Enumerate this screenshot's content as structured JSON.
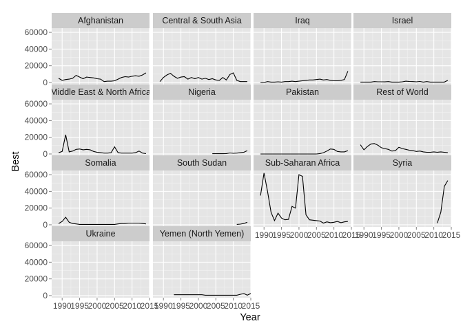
{
  "chart_data": {
    "type": "line",
    "xlabel": "Year",
    "ylabel": "Best",
    "xlim": [
      1987,
      2015
    ],
    "ylim": [
      -2500,
      65000
    ],
    "x_ticks": [
      1990,
      1995,
      2000,
      2005,
      2010,
      2015
    ],
    "x_tick_labels": [
      "1990",
      "1995",
      "2000",
      "2005",
      "2010",
      "2015"
    ],
    "y_ticks": [
      0,
      20000,
      40000,
      60000
    ],
    "y_tick_labels": [
      "0",
      "20000",
      "40000",
      "60000"
    ],
    "grid": true,
    "facets": [
      {
        "name": "Afghanistan",
        "points": [
          [
            1989,
            5000
          ],
          [
            1990,
            2500
          ],
          [
            1991,
            3500
          ],
          [
            1992,
            4000
          ],
          [
            1993,
            5000
          ],
          [
            1994,
            8500
          ],
          [
            1995,
            6500
          ],
          [
            1996,
            4500
          ],
          [
            1997,
            6500
          ],
          [
            1998,
            6000
          ],
          [
            1999,
            5500
          ],
          [
            2000,
            4500
          ],
          [
            2001,
            4000
          ],
          [
            2002,
            1000
          ],
          [
            2003,
            1500
          ],
          [
            2004,
            1500
          ],
          [
            2005,
            2000
          ],
          [
            2006,
            4000
          ],
          [
            2007,
            6000
          ],
          [
            2008,
            7000
          ],
          [
            2009,
            6500
          ],
          [
            2010,
            7500
          ],
          [
            2011,
            8000
          ],
          [
            2012,
            7500
          ],
          [
            2013,
            9000
          ],
          [
            2014,
            11500
          ]
        ]
      },
      {
        "name": "Central & South Asia",
        "points": [
          [
            1989,
            1000
          ],
          [
            1990,
            6000
          ],
          [
            1991,
            9000
          ],
          [
            1992,
            11000
          ],
          [
            1993,
            7500
          ],
          [
            1994,
            5000
          ],
          [
            1995,
            6500
          ],
          [
            1996,
            7000
          ],
          [
            1997,
            4000
          ],
          [
            1998,
            6000
          ],
          [
            1999,
            4500
          ],
          [
            2000,
            6000
          ],
          [
            2001,
            4000
          ],
          [
            2002,
            5000
          ],
          [
            2003,
            3500
          ],
          [
            2004,
            4500
          ],
          [
            2005,
            3000
          ],
          [
            2006,
            2500
          ],
          [
            2007,
            6000
          ],
          [
            2008,
            3000
          ],
          [
            2009,
            9500
          ],
          [
            2010,
            11500
          ],
          [
            2011,
            2500
          ],
          [
            2012,
            1000
          ],
          [
            2013,
            1000
          ],
          [
            2014,
            1000
          ]
        ]
      },
      {
        "name": "Iraq",
        "points": [
          [
            1989,
            0
          ],
          [
            1990,
            0
          ],
          [
            1991,
            1000
          ],
          [
            1992,
            500
          ],
          [
            1993,
            500
          ],
          [
            1994,
            800
          ],
          [
            1995,
            500
          ],
          [
            1996,
            1000
          ],
          [
            1997,
            1000
          ],
          [
            1998,
            1500
          ],
          [
            1999,
            1000
          ],
          [
            2000,
            1500
          ],
          [
            2001,
            2000
          ],
          [
            2002,
            2500
          ],
          [
            2003,
            3000
          ],
          [
            2004,
            3000
          ],
          [
            2005,
            3500
          ],
          [
            2006,
            4000
          ],
          [
            2007,
            3000
          ],
          [
            2008,
            3500
          ],
          [
            2009,
            2500
          ],
          [
            2010,
            2000
          ],
          [
            2011,
            2000
          ],
          [
            2012,
            2500
          ],
          [
            2013,
            3500
          ],
          [
            2014,
            13500
          ]
        ]
      },
      {
        "name": "Israel",
        "points": [
          [
            1989,
            500
          ],
          [
            1990,
            500
          ],
          [
            1991,
            500
          ],
          [
            1992,
            500
          ],
          [
            1993,
            1000
          ],
          [
            1994,
            800
          ],
          [
            1995,
            800
          ],
          [
            1996,
            700
          ],
          [
            1997,
            1000
          ],
          [
            1998,
            500
          ],
          [
            1999,
            500
          ],
          [
            2000,
            500
          ],
          [
            2001,
            800
          ],
          [
            2002,
            1500
          ],
          [
            2003,
            1200
          ],
          [
            2004,
            1000
          ],
          [
            2005,
            800
          ],
          [
            2006,
            1200
          ],
          [
            2007,
            500
          ],
          [
            2008,
            1000
          ],
          [
            2009,
            500
          ],
          [
            2010,
            500
          ],
          [
            2011,
            500
          ],
          [
            2012,
            500
          ],
          [
            2013,
            500
          ],
          [
            2014,
            2500
          ]
        ]
      },
      {
        "name": "Middle East & North Africa",
        "points": [
          [
            1989,
            1500
          ],
          [
            1990,
            3000
          ],
          [
            1991,
            23000
          ],
          [
            1992,
            2500
          ],
          [
            1993,
            3500
          ],
          [
            1994,
            5500
          ],
          [
            1995,
            6000
          ],
          [
            1996,
            5000
          ],
          [
            1997,
            5500
          ],
          [
            1998,
            5000
          ],
          [
            1999,
            3000
          ],
          [
            2000,
            2000
          ],
          [
            2001,
            1500
          ],
          [
            2002,
            1000
          ],
          [
            2003,
            1000
          ],
          [
            2004,
            1500
          ],
          [
            2005,
            8500
          ],
          [
            2006,
            1500
          ],
          [
            2007,
            1000
          ],
          [
            2008,
            1000
          ],
          [
            2009,
            1000
          ],
          [
            2010,
            1000
          ],
          [
            2011,
            1500
          ],
          [
            2012,
            3500
          ],
          [
            2013,
            1000
          ],
          [
            2014,
            500
          ]
        ]
      },
      {
        "name": "Nigeria",
        "points": [
          [
            2004,
            300
          ],
          [
            2005,
            300
          ],
          [
            2006,
            400
          ],
          [
            2007,
            300
          ],
          [
            2008,
            500
          ],
          [
            2009,
            1200
          ],
          [
            2010,
            800
          ],
          [
            2011,
            1000
          ],
          [
            2012,
            1500
          ],
          [
            2013,
            2000
          ],
          [
            2014,
            4000
          ]
        ]
      },
      {
        "name": "Pakistan",
        "points": [
          [
            1989,
            0
          ],
          [
            1990,
            0
          ],
          [
            1991,
            0
          ],
          [
            1992,
            0
          ],
          [
            1993,
            0
          ],
          [
            1994,
            0
          ],
          [
            1995,
            0
          ],
          [
            1996,
            0
          ],
          [
            1997,
            0
          ],
          [
            1998,
            0
          ],
          [
            1999,
            0
          ],
          [
            2000,
            0
          ],
          [
            2001,
            0
          ],
          [
            2002,
            0
          ],
          [
            2003,
            0
          ],
          [
            2004,
            0
          ],
          [
            2005,
            0
          ],
          [
            2006,
            500
          ],
          [
            2007,
            1500
          ],
          [
            2008,
            3500
          ],
          [
            2009,
            6000
          ],
          [
            2010,
            5500
          ],
          [
            2011,
            3000
          ],
          [
            2012,
            2500
          ],
          [
            2013,
            2500
          ],
          [
            2014,
            4000
          ]
        ]
      },
      {
        "name": "Rest of World",
        "points": [
          [
            1989,
            11000
          ],
          [
            1990,
            5000
          ],
          [
            1991,
            9000
          ],
          [
            1992,
            12000
          ],
          [
            1993,
            12500
          ],
          [
            1994,
            10500
          ],
          [
            1995,
            7500
          ],
          [
            1996,
            6500
          ],
          [
            1997,
            5500
          ],
          [
            1998,
            3500
          ],
          [
            1999,
            4000
          ],
          [
            2000,
            8000
          ],
          [
            2001,
            6500
          ],
          [
            2002,
            5500
          ],
          [
            2003,
            4500
          ],
          [
            2004,
            4000
          ],
          [
            2005,
            3000
          ],
          [
            2006,
            3500
          ],
          [
            2007,
            2500
          ],
          [
            2008,
            2000
          ],
          [
            2009,
            2000
          ],
          [
            2010,
            2500
          ],
          [
            2011,
            2000
          ],
          [
            2012,
            2500
          ],
          [
            2013,
            2000
          ],
          [
            2014,
            1500
          ]
        ]
      },
      {
        "name": "Somalia",
        "points": [
          [
            1989,
            1500
          ],
          [
            1990,
            4000
          ],
          [
            1991,
            9000
          ],
          [
            1992,
            3000
          ],
          [
            1993,
            1500
          ],
          [
            1994,
            1000
          ],
          [
            1995,
            500
          ],
          [
            1996,
            500
          ],
          [
            1997,
            500
          ],
          [
            1998,
            500
          ],
          [
            1999,
            500
          ],
          [
            2000,
            500
          ],
          [
            2001,
            500
          ],
          [
            2002,
            500
          ],
          [
            2003,
            500
          ],
          [
            2004,
            500
          ],
          [
            2005,
            500
          ],
          [
            2006,
            1000
          ],
          [
            2007,
            1500
          ],
          [
            2008,
            1500
          ],
          [
            2009,
            2000
          ],
          [
            2010,
            2000
          ],
          [
            2011,
            2000
          ],
          [
            2012,
            2000
          ],
          [
            2013,
            1500
          ],
          [
            2014,
            1000
          ]
        ]
      },
      {
        "name": "South Sudan",
        "points": [
          [
            2011,
            500
          ],
          [
            2012,
            800
          ],
          [
            2013,
            1500
          ],
          [
            2014,
            3000
          ]
        ]
      },
      {
        "name": "Sub-Saharan Africa",
        "points": [
          [
            1989,
            35000
          ],
          [
            1990,
            62000
          ],
          [
            1991,
            40000
          ],
          [
            1992,
            15000
          ],
          [
            1993,
            5000
          ],
          [
            1994,
            14000
          ],
          [
            1995,
            8000
          ],
          [
            1996,
            6000
          ],
          [
            1997,
            6500
          ],
          [
            1998,
            22000
          ],
          [
            1999,
            20000
          ],
          [
            2000,
            60000
          ],
          [
            2001,
            58000
          ],
          [
            2002,
            12000
          ],
          [
            2003,
            6000
          ],
          [
            2004,
            5500
          ],
          [
            2005,
            5000
          ],
          [
            2006,
            4500
          ],
          [
            2007,
            2000
          ],
          [
            2008,
            3500
          ],
          [
            2009,
            2500
          ],
          [
            2010,
            3000
          ],
          [
            2011,
            4000
          ],
          [
            2012,
            2500
          ],
          [
            2013,
            3500
          ],
          [
            2014,
            4000
          ]
        ]
      },
      {
        "name": "Syria",
        "points": [
          [
            2011,
            2000
          ],
          [
            2012,
            15000
          ],
          [
            2013,
            46000
          ],
          [
            2014,
            53000
          ]
        ]
      },
      {
        "name": "Ukraine",
        "points": []
      },
      {
        "name": "Yemen (North Yemen)",
        "points": [
          [
            1993,
            1000
          ],
          [
            1994,
            1000
          ],
          [
            1995,
            1000
          ],
          [
            1996,
            1000
          ],
          [
            1997,
            1000
          ],
          [
            1998,
            1000
          ],
          [
            1999,
            1000
          ],
          [
            2000,
            1000
          ],
          [
            2001,
            1000
          ],
          [
            2002,
            500
          ],
          [
            2003,
            500
          ],
          [
            2004,
            500
          ],
          [
            2005,
            500
          ],
          [
            2006,
            500
          ],
          [
            2007,
            500
          ],
          [
            2008,
            500
          ],
          [
            2009,
            500
          ],
          [
            2010,
            500
          ],
          [
            2011,
            500
          ],
          [
            2012,
            1500
          ],
          [
            2013,
            2500
          ],
          [
            2014,
            500
          ],
          [
            2015,
            2500
          ]
        ]
      }
    ]
  }
}
